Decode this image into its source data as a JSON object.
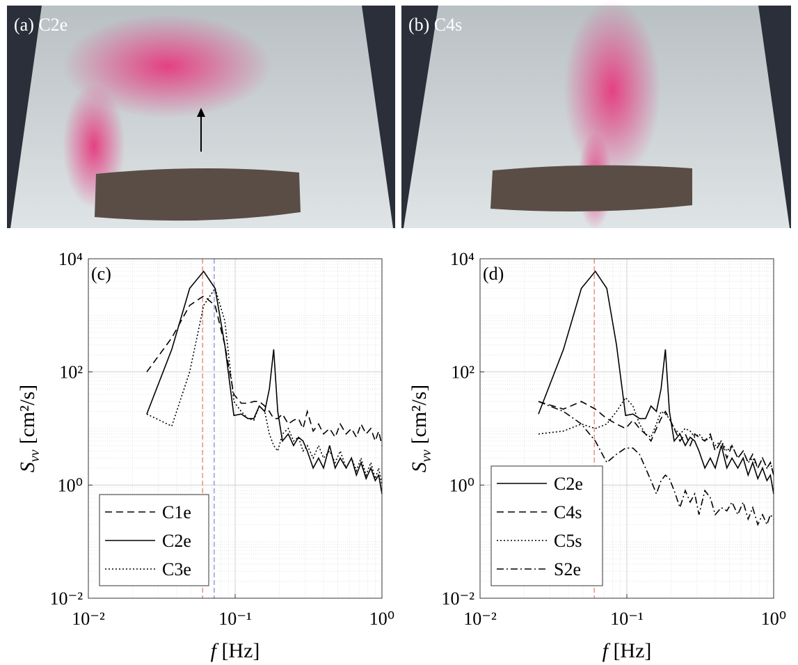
{
  "panels": [
    {
      "label": "(a) C2e"
    },
    {
      "label": "(b) C4s"
    }
  ],
  "chart_data": [
    {
      "type": "line",
      "panel_label": "(c)",
      "log_x": true,
      "log_y": true,
      "grid": true,
      "minor_grid": true,
      "legend": "lower left",
      "x_label": {
        "symbol": "f",
        "unit": "[Hz]"
      },
      "y_label": {
        "symbol": "S",
        "subscript": "vv",
        "unit": "[cm²/s]"
      },
      "xlim": [
        0.01,
        1
      ],
      "ylim": [
        0.01,
        10000
      ],
      "xticks": [
        {
          "value": 0.01,
          "label": "10⁻²"
        },
        {
          "value": 0.1,
          "label": "10⁻¹"
        },
        {
          "value": 1,
          "label": "10⁰"
        }
      ],
      "yticks": [
        {
          "value": 0.01,
          "label": "10⁻²"
        },
        {
          "value": 1,
          "label": "10⁰"
        },
        {
          "value": 100,
          "label": "10²"
        },
        {
          "value": 10000,
          "label": "10⁴"
        }
      ],
      "vlines": [
        {
          "x": 0.06,
          "color": "#e8806f"
        },
        {
          "x": 0.072,
          "color": "#7f8fd8"
        }
      ],
      "x": [
        0.025,
        0.037,
        0.049,
        0.061,
        0.073,
        0.085,
        0.098,
        0.11,
        0.122,
        0.134,
        0.146,
        0.159,
        0.171,
        0.183,
        0.195,
        0.21,
        0.23,
        0.25,
        0.27,
        0.29,
        0.31,
        0.34,
        0.37,
        0.4,
        0.44,
        0.48,
        0.52,
        0.57,
        0.62,
        0.67,
        0.72,
        0.78,
        0.84,
        0.9,
        0.95,
        1.0
      ],
      "series": [
        {
          "name": "C1e",
          "color": "#000000",
          "dash": "dashed",
          "values": [
            100,
            400,
            1500,
            2200,
            1500,
            300,
            40,
            28,
            28,
            30,
            30,
            25,
            20,
            15,
            15,
            18,
            12,
            14,
            15,
            10,
            20,
            9,
            12,
            8,
            10,
            7,
            12,
            8,
            10,
            7,
            12,
            8,
            10,
            6,
            9,
            5
          ]
        },
        {
          "name": "C2e",
          "color": "#000000",
          "dash": "solid",
          "values": [
            18,
            250,
            3000,
            6000,
            3000,
            300,
            17,
            18,
            15,
            15,
            25,
            20,
            50,
            250,
            20,
            6,
            8,
            5,
            7,
            6,
            4,
            2,
            3,
            2,
            5,
            2,
            3,
            2,
            3,
            1.5,
            2.5,
            1.3,
            2,
            1.2,
            1.5,
            0.7
          ]
        },
        {
          "name": "C3e",
          "color": "#000000",
          "dash": "dotted",
          "values": [
            18,
            11,
            100,
            1500,
            3000,
            800,
            30,
            20,
            15,
            14,
            25,
            20,
            8,
            5,
            4,
            8,
            10,
            6,
            7,
            4,
            5,
            3,
            5,
            3,
            4,
            2.5,
            4,
            2,
            3,
            1.8,
            3,
            1.5,
            2.5,
            1.3,
            2,
            1
          ]
        }
      ]
    },
    {
      "type": "line",
      "panel_label": "(d)",
      "log_x": true,
      "log_y": true,
      "grid": true,
      "minor_grid": true,
      "legend": "lower left",
      "x_label": {
        "symbol": "f",
        "unit": "[Hz]"
      },
      "y_label": {
        "symbol": "S",
        "subscript": "vv",
        "unit": "[cm²/s]"
      },
      "xlim": [
        0.01,
        1
      ],
      "ylim": [
        0.01,
        10000
      ],
      "xticks": [
        {
          "value": 0.01,
          "label": "10⁻²"
        },
        {
          "value": 0.1,
          "label": "10⁻¹"
        },
        {
          "value": 1,
          "label": "10⁰"
        }
      ],
      "yticks": [
        {
          "value": 0.01,
          "label": "10⁻²"
        },
        {
          "value": 1,
          "label": "10⁰"
        },
        {
          "value": 100,
          "label": "10²"
        },
        {
          "value": 10000,
          "label": "10⁴"
        }
      ],
      "vlines": [
        {
          "x": 0.06,
          "color": "#e8806f"
        }
      ],
      "x": [
        0.025,
        0.037,
        0.049,
        0.061,
        0.073,
        0.085,
        0.098,
        0.11,
        0.122,
        0.134,
        0.146,
        0.159,
        0.171,
        0.183,
        0.195,
        0.21,
        0.23,
        0.25,
        0.27,
        0.29,
        0.31,
        0.34,
        0.37,
        0.4,
        0.44,
        0.48,
        0.52,
        0.57,
        0.62,
        0.67,
        0.72,
        0.78,
        0.84,
        0.9,
        0.95,
        1.0
      ],
      "series": [
        {
          "name": "C2e",
          "color": "#000000",
          "dash": "solid",
          "values": [
            18,
            250,
            3000,
            6000,
            3000,
            300,
            17,
            18,
            15,
            15,
            25,
            20,
            50,
            250,
            20,
            6,
            8,
            5,
            7,
            6,
            4,
            2,
            3,
            2,
            5,
            2,
            3,
            2,
            3,
            1.5,
            2.5,
            1.3,
            2,
            1.2,
            1.5,
            0.7
          ]
        },
        {
          "name": "C4s",
          "color": "#000000",
          "dash": "dashed",
          "values": [
            30,
            22,
            30,
            22,
            15,
            12,
            10,
            14,
            10,
            8,
            6,
            10,
            15,
            20,
            15,
            10,
            6,
            8,
            5,
            8,
            7,
            6,
            8,
            4,
            6,
            3,
            5,
            3,
            4,
            2.5,
            3.5,
            2,
            3,
            2,
            2.5,
            1.5
          ]
        },
        {
          "name": "C5s",
          "color": "#000000",
          "dash": "dotted",
          "values": [
            8,
            9,
            12,
            10,
            12,
            20,
            35,
            25,
            12,
            8,
            7,
            12,
            20,
            18,
            15,
            10,
            8,
            10,
            9,
            7,
            8,
            6,
            7,
            5,
            6,
            4,
            5,
            3,
            4,
            2.5,
            3,
            2,
            3,
            2,
            2.5,
            1.5
          ]
        },
        {
          "name": "S2e",
          "color": "#000000",
          "dash": "dashdot",
          "values": [
            30,
            20,
            12,
            6,
            2.5,
            3.5,
            4.5,
            4.5,
            3.5,
            2,
            1.2,
            0.7,
            1.2,
            1.5,
            1.3,
            0.8,
            0.4,
            0.8,
            0.5,
            0.7,
            0.3,
            0.8,
            0.6,
            0.3,
            0.4,
            0.35,
            0.5,
            0.3,
            0.5,
            0.25,
            0.4,
            0.2,
            0.3,
            0.2,
            0.3,
            0.25
          ]
        }
      ]
    }
  ]
}
